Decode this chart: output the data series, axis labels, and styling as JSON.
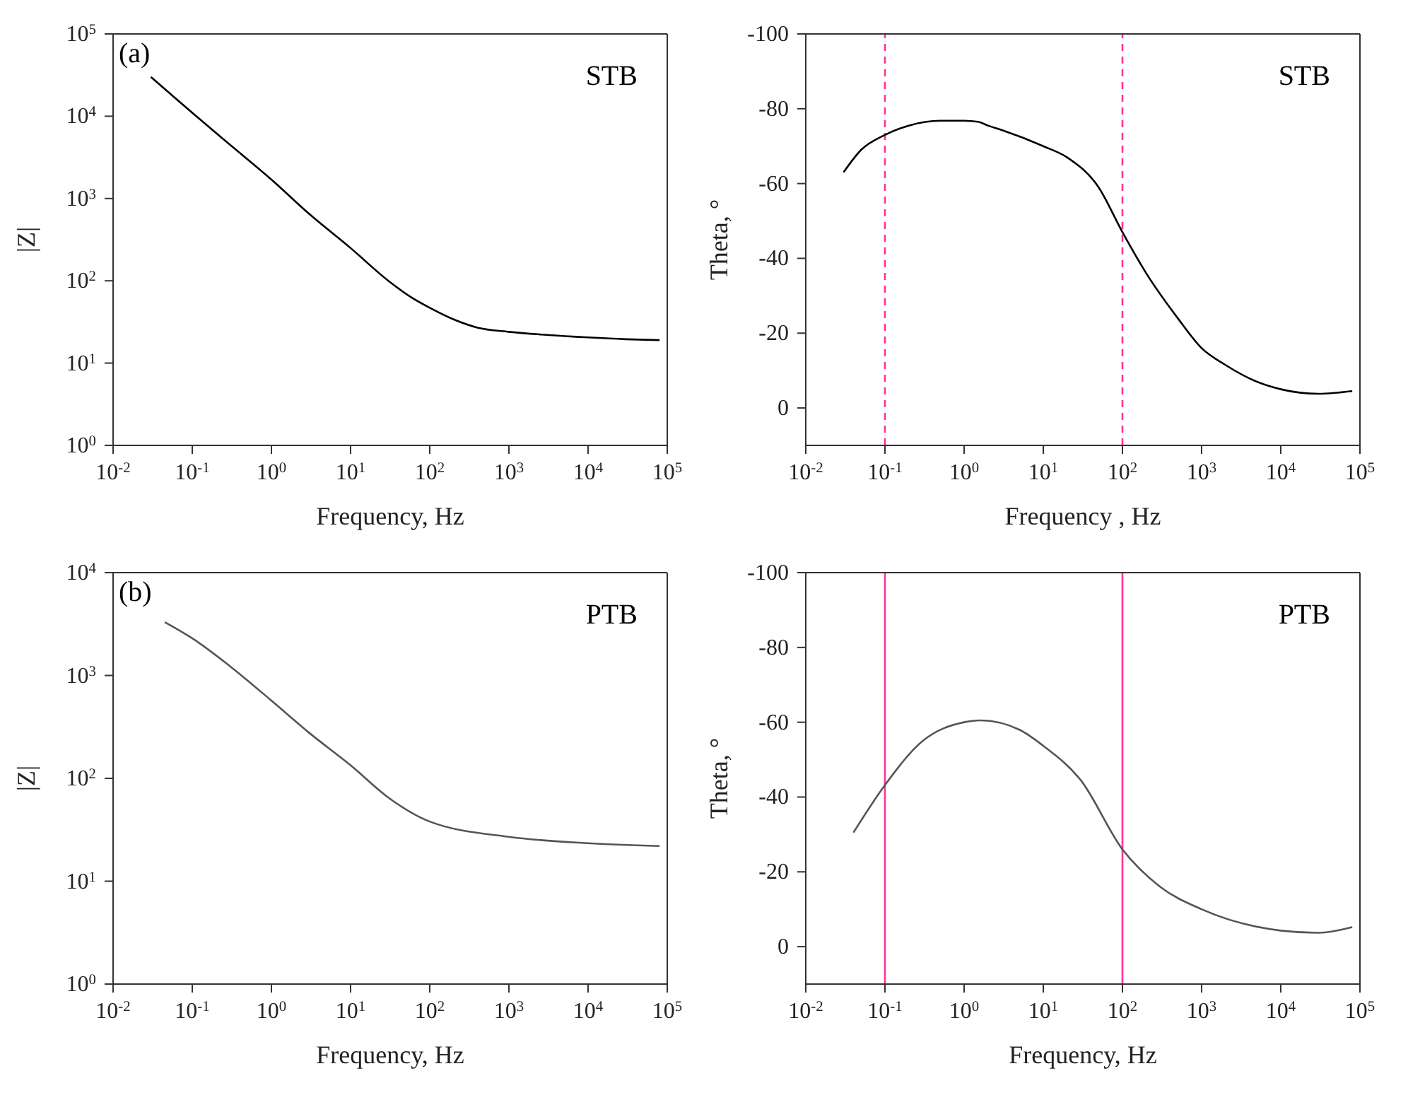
{
  "chart_data": [
    {
      "type": "line",
      "xlabel": "Frequency, Hz",
      "ylabel": "|Z|",
      "annotations": [
        "(a)",
        "STB"
      ],
      "log": "xy",
      "xlim": [
        0.01,
        100000
      ],
      "xticks": [
        {
          "value": 0.01,
          "label": "10$^{-2}$"
        },
        {
          "value": 0.1,
          "label": "10$^{-1}$"
        },
        {
          "value": 1,
          "label": "10$^{0}$"
        },
        {
          "value": 10,
          "label": "10$^{1}$"
        },
        {
          "value": 100,
          "label": "10$^{2}$"
        },
        {
          "value": 1000,
          "label": "10$^{3}$"
        },
        {
          "value": 10000,
          "label": "10$^{4}$"
        },
        {
          "value": 100000,
          "label": "10$^{5}$"
        }
      ],
      "ylim": [
        1,
        100000
      ],
      "yticks": [
        {
          "value": 1,
          "label": "10$^{0}$"
        },
        {
          "value": 10,
          "label": "10$^{1}$"
        },
        {
          "value": 100,
          "label": "10$^{2}$"
        },
        {
          "value": 1000,
          "label": "10$^{3}$"
        },
        {
          "value": 10000,
          "label": "10$^{4}$"
        },
        {
          "value": 100000,
          "label": "10$^{5}$"
        }
      ],
      "x": [
        0.03,
        0.1,
        0.3,
        1,
        3,
        10,
        30,
        60,
        100,
        200,
        400,
        1000,
        3000,
        10000,
        30000,
        80000
      ],
      "series": [
        {
          "color": "#000000",
          "values": [
            30000,
            11000,
            4500,
            1700,
            650,
            250,
            100,
            62,
            47,
            34,
            27,
            24,
            22,
            20.5,
            19.5,
            19
          ]
        }
      ]
    },
    {
      "type": "line",
      "xlabel": "Frequency , Hz",
      "ylabel": "Theta, °",
      "annotations": [
        "STB"
      ],
      "log": "x",
      "xlim": [
        0.01,
        100000
      ],
      "xticks": [
        {
          "value": 0.01,
          "label": "10$^{-2}$"
        },
        {
          "value": 0.1,
          "label": "10$^{-1}$"
        },
        {
          "value": 1,
          "label": "10$^{0}$"
        },
        {
          "value": 10,
          "label": "10$^{1}$"
        },
        {
          "value": 100,
          "label": "10$^{2}$"
        },
        {
          "value": 1000,
          "label": "10$^{3}$"
        },
        {
          "value": 10000,
          "label": "10$^{4}$"
        },
        {
          "value": 100000,
          "label": "10$^{5}$"
        }
      ],
      "ylim": [
        10,
        -100
      ],
      "yticks": [
        0,
        -20,
        -40,
        -60,
        -80,
        -100
      ],
      "x": [
        0.03,
        0.05,
        0.1,
        0.2,
        0.5,
        1,
        1.5,
        2,
        3,
        10,
        20,
        50,
        100,
        200,
        500,
        1000,
        2000,
        5000,
        10000,
        30000,
        80000
      ],
      "series": [
        {
          "color": "#000000",
          "values": [
            -63,
            -69,
            -73,
            -75.5,
            -76.8,
            -76.8,
            -76.5,
            -75.5,
            -74.3,
            -70,
            -67,
            -59,
            -47,
            -36,
            -24,
            -16,
            -11.5,
            -7,
            -5,
            -3.8,
            -4.5
          ]
        }
      ],
      "ref_lines": [
        {
          "axis": "x",
          "value": 0.1,
          "color": "#ff3399",
          "line_style": "dashed"
        },
        {
          "axis": "x",
          "value": 100,
          "color": "#ff3399",
          "line_style": "dashed"
        }
      ]
    },
    {
      "type": "line",
      "xlabel": "Frequency, Hz",
      "ylabel": "|Z|",
      "annotations": [
        "(b)",
        "PTB"
      ],
      "log": "xy",
      "xlim": [
        0.01,
        100000
      ],
      "xticks": [
        {
          "value": 0.01,
          "label": "10$^{-2}$"
        },
        {
          "value": 0.1,
          "label": "10$^{-1}$"
        },
        {
          "value": 1,
          "label": "10$^{0}$"
        },
        {
          "value": 10,
          "label": "10$^{1}$"
        },
        {
          "value": 100,
          "label": "10$^{2}$"
        },
        {
          "value": 1000,
          "label": "10$^{3}$"
        },
        {
          "value": 10000,
          "label": "10$^{4}$"
        },
        {
          "value": 100000,
          "label": "10$^{5}$"
        }
      ],
      "ylim": [
        1,
        10000
      ],
      "yticks": [
        {
          "value": 1,
          "label": "10$^{0}$"
        },
        {
          "value": 10,
          "label": "10$^{1}$"
        },
        {
          "value": 100,
          "label": "10$^{2}$"
        },
        {
          "value": 1000,
          "label": "10$^{3}$"
        },
        {
          "value": 10000,
          "label": "10$^{4}$"
        }
      ],
      "x": [
        0.045,
        0.1,
        0.3,
        1,
        3,
        10,
        30,
        100,
        1000,
        10000,
        80000
      ],
      "series": [
        {
          "color": "#555555",
          "values": [
            3300,
            2300,
            1230,
            570,
            277,
            134,
            65,
            38,
            27,
            23.4,
            22
          ]
        }
      ]
    },
    {
      "type": "line",
      "xlabel": "Frequency, Hz",
      "ylabel": "Theta, °",
      "annotations": [
        "PTB"
      ],
      "log": "x",
      "xlim": [
        0.01,
        100000
      ],
      "xticks": [
        {
          "value": 0.01,
          "label": "10$^{-2}$"
        },
        {
          "value": 0.1,
          "label": "10$^{-1}$"
        },
        {
          "value": 1,
          "label": "10$^{0}$"
        },
        {
          "value": 10,
          "label": "10$^{1}$"
        },
        {
          "value": 100,
          "label": "10$^{2}$"
        },
        {
          "value": 1000,
          "label": "10$^{3}$"
        },
        {
          "value": 10000,
          "label": "10$^{4}$"
        },
        {
          "value": 100000,
          "label": "10$^{5}$"
        }
      ],
      "ylim": [
        10,
        -100
      ],
      "yticks": [
        0,
        -20,
        -40,
        -60,
        -80,
        -100
      ],
      "x": [
        0.04,
        0.1,
        0.3,
        1,
        1.6,
        5,
        10,
        30,
        100,
        300,
        1000,
        10000,
        30000,
        80000
      ],
      "series": [
        {
          "color": "#555555",
          "values": [
            -30.5,
            -43.2,
            -55,
            -60,
            -60.5,
            -58,
            -53.7,
            -44.4,
            -26,
            -16,
            -10,
            -4.3,
            -3.7,
            -5.2
          ]
        }
      ],
      "ref_lines": [
        {
          "axis": "x",
          "value": 0.1,
          "color": "#ff3399",
          "line_style": "solid"
        },
        {
          "axis": "x",
          "value": 100,
          "color": "#ff3399",
          "line_style": "solid"
        }
      ]
    }
  ]
}
